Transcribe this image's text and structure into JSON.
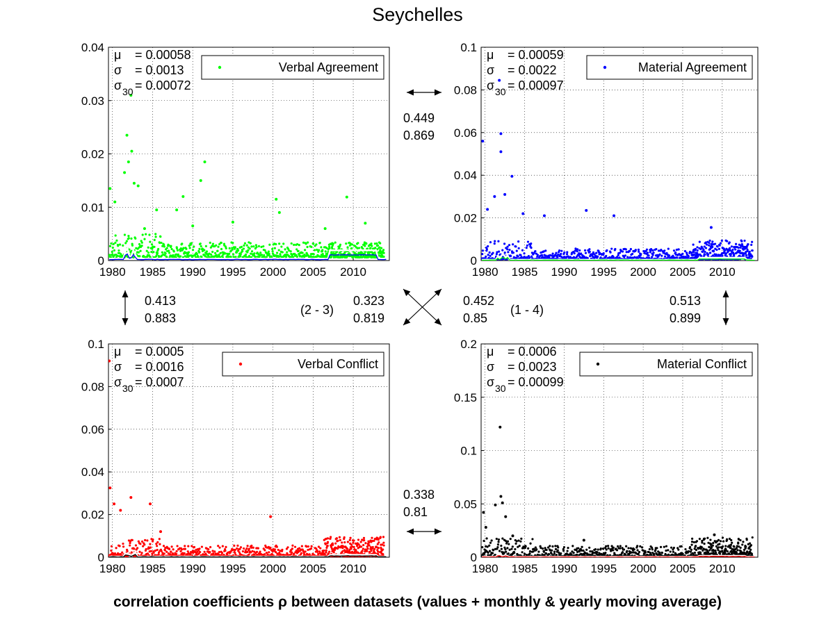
{
  "title": "Seychelles",
  "footer": "correlation coefficients ρ between datasets (values + monthly & yearly moving average)",
  "colors": {
    "verbal_agreement": "#00ff00",
    "material_agreement": "#0000ff",
    "verbal_conflict": "#ff0000",
    "material_conflict": "#000000"
  },
  "icons": {
    "double-arrow": "↔",
    "cross-arrows": "✕"
  },
  "correlations": {
    "top": {
      "values": [
        "0.449",
        "0.869"
      ]
    },
    "bottom": {
      "values": [
        "0.338",
        "0.81"
      ]
    },
    "left": {
      "values": [
        "0.413",
        "0.883"
      ]
    },
    "right": {
      "values": [
        "0.513",
        "0.899"
      ]
    },
    "diag_2_3": {
      "label": "(2 - 3)",
      "values": [
        "0.323",
        "0.819"
      ]
    },
    "diag_1_4": {
      "label": "(1 - 4)",
      "values": [
        "0.452",
        "0.85"
      ]
    }
  },
  "chart_data": [
    {
      "type": "scatter",
      "legend": "Verbal Agreement",
      "color": "#00ff00",
      "xlim": [
        1979.5,
        2014.5
      ],
      "ylim": [
        0,
        0.04
      ],
      "yticks": [
        "0",
        "0.01",
        "0.02",
        "0.03",
        "0.04"
      ],
      "xticks": [
        "1980",
        "1985",
        "1990",
        "1995",
        "2000",
        "2005",
        "2010"
      ],
      "stats": {
        "mu": "= 0.00058",
        "sigma": "= 0.0013",
        "sigma30": "= 0.00072"
      },
      "baseline": 0.0006,
      "moving_avg_color": "#0000ff",
      "peaks": [
        [
          1979.7,
          0.0135
        ],
        [
          1980.3,
          0.011
        ],
        [
          1981.5,
          0.0165
        ],
        [
          1981.8,
          0.0235
        ],
        [
          1982.0,
          0.0185
        ],
        [
          1982.3,
          0.031
        ],
        [
          1982.4,
          0.0205
        ],
        [
          1982.7,
          0.0145
        ],
        [
          1983.2,
          0.014
        ],
        [
          1984.0,
          0.006
        ],
        [
          1985.5,
          0.0095
        ],
        [
          1988.0,
          0.0095
        ],
        [
          1988.8,
          0.012
        ],
        [
          1990.0,
          0.0065
        ],
        [
          1991.0,
          0.015
        ],
        [
          1991.5,
          0.0185
        ],
        [
          1995.0,
          0.0072
        ],
        [
          2000.4,
          0.0115
        ],
        [
          2000.8,
          0.009
        ],
        [
          2006.5,
          0.006
        ],
        [
          2009.2,
          0.0119
        ],
        [
          2011.5,
          0.007
        ]
      ],
      "seed": 11
    },
    {
      "type": "scatter",
      "legend": "Material Agreement",
      "color": "#0000ff",
      "xlim": [
        1979.5,
        2014.5
      ],
      "ylim": [
        0,
        0.1
      ],
      "yticks": [
        "0",
        "0.02",
        "0.04",
        "0.06",
        "0.08",
        "0.1"
      ],
      "xticks": [
        "1980",
        "1985",
        "1990",
        "1995",
        "2000",
        "2005",
        "2010"
      ],
      "stats": {
        "mu": "= 0.00059",
        "sigma": "= 0.0022",
        "sigma30": "= 0.00097"
      },
      "baseline": 0.0006,
      "moving_avg_color": "#00ff00",
      "peaks": [
        [
          1979.7,
          0.056
        ],
        [
          1980.3,
          0.024
        ],
        [
          1981.2,
          0.03
        ],
        [
          1981.8,
          0.0845
        ],
        [
          1982.0,
          0.0595
        ],
        [
          1982.0,
          0.051
        ],
        [
          1982.5,
          0.031
        ],
        [
          1983.4,
          0.0395
        ],
        [
          1984.8,
          0.022
        ],
        [
          1987.5,
          0.021
        ],
        [
          1992.8,
          0.0235
        ],
        [
          1996.3,
          0.021
        ],
        [
          2008.6,
          0.0155
        ]
      ],
      "seed": 23
    },
    {
      "type": "scatter",
      "legend": "Verbal Conflict",
      "color": "#ff0000",
      "xlim": [
        1979.5,
        2014.5
      ],
      "ylim": [
        0,
        0.1
      ],
      "yticks": [
        "0",
        "0.02",
        "0.04",
        "0.06",
        "0.08",
        "0.1"
      ],
      "xticks": [
        "1980",
        "1985",
        "1990",
        "1995",
        "2000",
        "2005",
        "2010"
      ],
      "stats": {
        "mu": "= 0.0005",
        "sigma": "= 0.0016",
        "sigma30": "= 0.0007"
      },
      "baseline": 0.0005,
      "moving_avg_color": "#000000",
      "peaks": [
        [
          1979.6,
          0.092
        ],
        [
          1979.7,
          0.0325
        ],
        [
          1980.2,
          0.025
        ],
        [
          1981.0,
          0.022
        ],
        [
          1982.3,
          0.028
        ],
        [
          1984.7,
          0.025
        ],
        [
          1986.0,
          0.012
        ],
        [
          1999.7,
          0.019
        ]
      ],
      "seed": 37
    },
    {
      "type": "scatter",
      "legend": "Material Conflict",
      "color": "#000000",
      "xlim": [
        1979.5,
        2014.5
      ],
      "ylim": [
        0,
        0.2
      ],
      "yticks": [
        "0",
        "0.05",
        "0.1",
        "0.15",
        "0.2"
      ],
      "xticks": [
        "1980",
        "1985",
        "1990",
        "1995",
        "2000",
        "2005",
        "2010"
      ],
      "stats": {
        "mu": "= 0.0006",
        "sigma": "= 0.0023",
        "sigma30": "= 0.00099"
      },
      "baseline": 0.0006,
      "moving_avg_color": "#ff0000",
      "peaks": [
        [
          1979.8,
          0.042
        ],
        [
          1980.1,
          0.028
        ],
        [
          1981.3,
          0.049
        ],
        [
          1981.9,
          0.122
        ],
        [
          1982.0,
          0.057
        ],
        [
          1982.2,
          0.051
        ],
        [
          1982.6,
          0.038
        ],
        [
          1983.5,
          0.02
        ],
        [
          1992.5,
          0.016
        ],
        [
          2009.0,
          0.021
        ]
      ],
      "seed": 51
    }
  ]
}
